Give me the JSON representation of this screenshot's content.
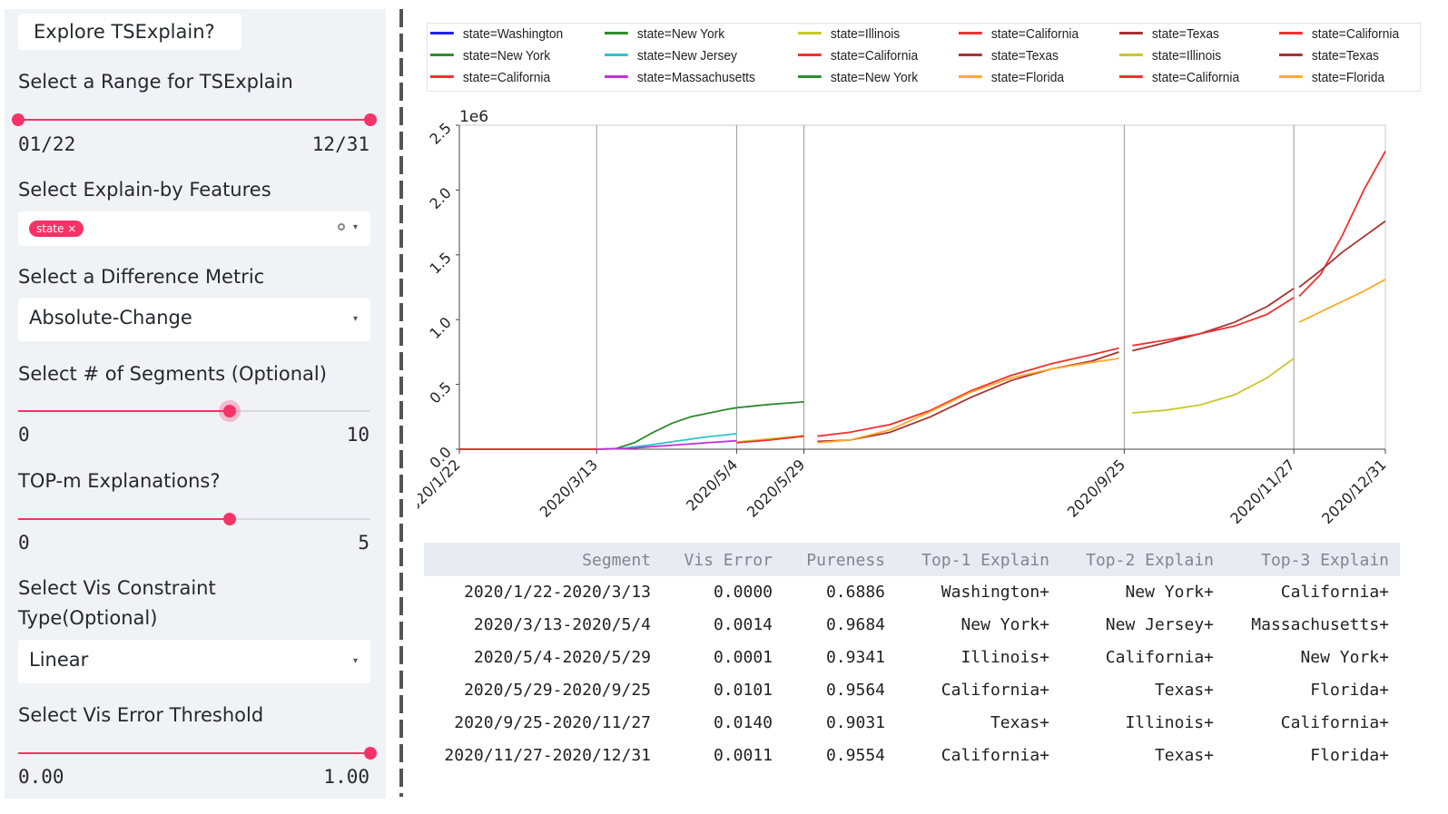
{
  "sidebar": {
    "explore_button": "Explore TSExplain?",
    "range": {
      "label": "Select a Range for TSExplain",
      "min": "01/22",
      "max": "12/31",
      "start_fraction": 0,
      "end_fraction": 1
    },
    "features": {
      "label": "Select Explain-by Features",
      "tags": [
        "state"
      ],
      "tag_remove": "×"
    },
    "metric": {
      "label": "Select a Difference Metric",
      "value": "Absolute-Change"
    },
    "segments": {
      "label": "Select # of Segments (Optional)",
      "min": "0",
      "max": "10",
      "value": 6
    },
    "topm": {
      "label": "TOP-m Explanations?",
      "min": "0",
      "max": "5",
      "value": 3
    },
    "constraint": {
      "label_line1": "Select Vis Constraint",
      "label_line2": "Type(Optional)",
      "value": "Linear"
    },
    "threshold": {
      "label": "Select Vis Error Threshold",
      "min": "0.00",
      "max": "1.00",
      "value": 1.0
    }
  },
  "legend": [
    [
      {
        "name": "state=Washington",
        "color": "#1f1fff"
      },
      {
        "name": "state=New York",
        "color": "#2e8b2e"
      },
      {
        "name": "state=California",
        "color": "#f23030"
      }
    ],
    [
      {
        "name": "state=New York",
        "color": "#2e8b2e"
      },
      {
        "name": "state=New Jersey",
        "color": "#2bc4cf"
      },
      {
        "name": "state=Massachusetts",
        "color": "#c431d6"
      }
    ],
    [
      {
        "name": "state=Illinois",
        "color": "#c8c82a"
      },
      {
        "name": "state=California",
        "color": "#f23030"
      },
      {
        "name": "state=New York",
        "color": "#2e8b2e"
      }
    ],
    [
      {
        "name": "state=California",
        "color": "#f23030"
      },
      {
        "name": "state=Texas",
        "color": "#a83232"
      },
      {
        "name": "state=Florida",
        "color": "#ffaa2a"
      }
    ],
    [
      {
        "name": "state=Texas",
        "color": "#a83232"
      },
      {
        "name": "state=Illinois",
        "color": "#c8c82a"
      },
      {
        "name": "state=California",
        "color": "#f23030"
      }
    ],
    [
      {
        "name": "state=California",
        "color": "#f23030"
      },
      {
        "name": "state=Texas",
        "color": "#a83232"
      },
      {
        "name": "state=Florida",
        "color": "#ffaa2a"
      }
    ]
  ],
  "chart_data": {
    "type": "line",
    "y_offset_label": "1e6",
    "ylim": [
      0,
      2.5
    ],
    "y_ticks": [
      "0.0",
      "0.5",
      "1.0",
      "1.5",
      "2.0",
      "2.5"
    ],
    "x_ticks": [
      "2020/1/22",
      "2020/3/13",
      "2020/5/4",
      "2020/5/29",
      "2020/9/25",
      "2020/11/27",
      "2020/12/31"
    ],
    "x_tick_days": [
      0,
      51,
      103,
      128,
      247,
      310,
      344
    ],
    "xlim": [
      0,
      344
    ],
    "segments": [
      {
        "range": [
          0,
          51
        ],
        "series": [
          {
            "name": "state=Washington",
            "color": "#1f1fff",
            "points": [
              [
                0,
                0
              ],
              [
                51,
                0
              ]
            ]
          },
          {
            "name": "state=New York",
            "color": "#2e8b2e",
            "points": [
              [
                0,
                0
              ],
              [
                51,
                0
              ]
            ]
          },
          {
            "name": "state=California",
            "color": "#f23030",
            "points": [
              [
                0,
                0
              ],
              [
                51,
                0
              ]
            ]
          }
        ]
      },
      {
        "range": [
          51,
          103
        ],
        "series": [
          {
            "name": "state=New York",
            "color": "#2e8b2e",
            "points": [
              [
                51,
                0
              ],
              [
                58,
                0.005
              ],
              [
                65,
                0.05
              ],
              [
                72,
                0.13
              ],
              [
                79,
                0.2
              ],
              [
                86,
                0.25
              ],
              [
                93,
                0.28
              ],
              [
                100,
                0.31
              ],
              [
                103,
                0.32
              ]
            ]
          },
          {
            "name": "state=New Jersey",
            "color": "#2bc4cf",
            "points": [
              [
                51,
                0
              ],
              [
                60,
                0.005
              ],
              [
                70,
                0.03
              ],
              [
                80,
                0.06
              ],
              [
                90,
                0.09
              ],
              [
                103,
                0.12
              ]
            ]
          },
          {
            "name": "state=Massachusetts",
            "color": "#c431d6",
            "points": [
              [
                51,
                0
              ],
              [
                62,
                0.005
              ],
              [
                72,
                0.02
              ],
              [
                82,
                0.035
              ],
              [
                92,
                0.05
              ],
              [
                103,
                0.065
              ]
            ]
          }
        ]
      },
      {
        "range": [
          103,
          128
        ],
        "series": [
          {
            "name": "state=Illinois",
            "color": "#c8c82a",
            "points": [
              [
                103,
                0.055
              ],
              [
                115,
                0.08
              ],
              [
                128,
                0.105
              ]
            ]
          },
          {
            "name": "state=California",
            "color": "#f23030",
            "points": [
              [
                103,
                0.05
              ],
              [
                115,
                0.07
              ],
              [
                128,
                0.1
              ]
            ]
          },
          {
            "name": "state=New York",
            "color": "#2e8b2e",
            "points": [
              [
                103,
                0.32
              ],
              [
                115,
                0.345
              ],
              [
                128,
                0.365
              ]
            ]
          }
        ]
      },
      {
        "range": [
          128,
          247
        ],
        "series": [
          {
            "name": "state=California",
            "color": "#f23030",
            "points": [
              [
                133,
                0.1
              ],
              [
                145,
                0.13
              ],
              [
                160,
                0.19
              ],
              [
                175,
                0.3
              ],
              [
                190,
                0.45
              ],
              [
                205,
                0.57
              ],
              [
                220,
                0.66
              ],
              [
                235,
                0.73
              ],
              [
                245,
                0.78
              ]
            ]
          },
          {
            "name": "state=Texas",
            "color": "#a83232",
            "points": [
              [
                133,
                0.06
              ],
              [
                145,
                0.07
              ],
              [
                160,
                0.13
              ],
              [
                175,
                0.25
              ],
              [
                190,
                0.4
              ],
              [
                205,
                0.53
              ],
              [
                220,
                0.62
              ],
              [
                235,
                0.68
              ],
              [
                245,
                0.75
              ]
            ]
          },
          {
            "name": "state=Florida",
            "color": "#ffaa2a",
            "points": [
              [
                133,
                0.05
              ],
              [
                145,
                0.07
              ],
              [
                160,
                0.15
              ],
              [
                175,
                0.29
              ],
              [
                190,
                0.44
              ],
              [
                205,
                0.55
              ],
              [
                220,
                0.62
              ],
              [
                235,
                0.67
              ],
              [
                245,
                0.7
              ]
            ]
          }
        ]
      },
      {
        "range": [
          247,
          310
        ],
        "series": [
          {
            "name": "state=Texas",
            "color": "#a83232",
            "points": [
              [
                250,
                0.76
              ],
              [
                262,
                0.82
              ],
              [
                275,
                0.89
              ],
              [
                288,
                0.98
              ],
              [
                300,
                1.1
              ],
              [
                310,
                1.24
              ]
            ]
          },
          {
            "name": "state=Illinois",
            "color": "#c8c82a",
            "points": [
              [
                250,
                0.28
              ],
              [
                262,
                0.3
              ],
              [
                275,
                0.34
              ],
              [
                288,
                0.42
              ],
              [
                300,
                0.55
              ],
              [
                310,
                0.7
              ]
            ]
          },
          {
            "name": "state=California",
            "color": "#f23030",
            "points": [
              [
                250,
                0.8
              ],
              [
                262,
                0.84
              ],
              [
                275,
                0.89
              ],
              [
                288,
                0.95
              ],
              [
                300,
                1.04
              ],
              [
                310,
                1.17
              ]
            ]
          }
        ]
      },
      {
        "range": [
          310,
          344
        ],
        "series": [
          {
            "name": "state=California",
            "color": "#f23030",
            "points": [
              [
                312,
                1.18
              ],
              [
                320,
                1.35
              ],
              [
                328,
                1.65
              ],
              [
                336,
                2.0
              ],
              [
                344,
                2.3
              ]
            ]
          },
          {
            "name": "state=Texas",
            "color": "#a83232",
            "points": [
              [
                312,
                1.25
              ],
              [
                320,
                1.38
              ],
              [
                328,
                1.52
              ],
              [
                336,
                1.64
              ],
              [
                344,
                1.76
              ]
            ]
          },
          {
            "name": "state=Florida",
            "color": "#ffaa2a",
            "points": [
              [
                312,
                0.98
              ],
              [
                320,
                1.06
              ],
              [
                328,
                1.14
              ],
              [
                336,
                1.22
              ],
              [
                344,
                1.31
              ]
            ]
          }
        ]
      }
    ]
  },
  "table": {
    "headers": [
      "Segment",
      "Vis Error",
      "Pureness",
      "Top-1 Explain",
      "Top-2 Explain",
      "Top-3 Explain"
    ],
    "rows": [
      [
        "2020/1/22-2020/3/13",
        "0.0000",
        "0.6886",
        "Washington+",
        "New York+",
        "California+"
      ],
      [
        "2020/3/13-2020/5/4",
        "0.0014",
        "0.9684",
        "New York+",
        "New Jersey+",
        "Massachusetts+"
      ],
      [
        "2020/5/4-2020/5/29",
        "0.0001",
        "0.9341",
        "Illinois+",
        "California+",
        "New York+"
      ],
      [
        "2020/5/29-2020/9/25",
        "0.0101",
        "0.9564",
        "California+",
        "Texas+",
        "Florida+"
      ],
      [
        "2020/9/25-2020/11/27",
        "0.0140",
        "0.9031",
        "Texas+",
        "Illinois+",
        "California+"
      ],
      [
        "2020/11/27-2020/12/31",
        "0.0011",
        "0.9554",
        "California+",
        "Texas+",
        "Florida+"
      ]
    ]
  }
}
